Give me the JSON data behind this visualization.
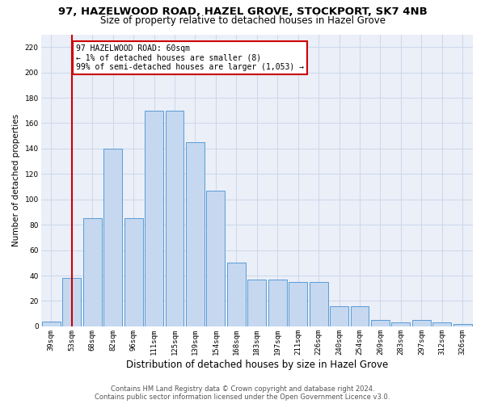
{
  "title": "97, HAZELWOOD ROAD, HAZEL GROVE, STOCKPORT, SK7 4NB",
  "subtitle": "Size of property relative to detached houses in Hazel Grove",
  "xlabel": "Distribution of detached houses by size in Hazel Grove",
  "ylabel": "Number of detached properties",
  "categories": [
    "39sqm",
    "53sqm",
    "68sqm",
    "82sqm",
    "96sqm",
    "111sqm",
    "125sqm",
    "139sqm",
    "154sqm",
    "168sqm",
    "183sqm",
    "197sqm",
    "211sqm",
    "226sqm",
    "240sqm",
    "254sqm",
    "269sqm",
    "283sqm",
    "297sqm",
    "312sqm",
    "326sqm"
  ],
  "values": [
    4,
    38,
    85,
    140,
    85,
    170,
    170,
    145,
    107,
    50,
    37,
    37,
    35,
    35,
    16,
    16,
    5,
    3,
    5,
    3,
    2
  ],
  "bar_color": "#c5d8f0",
  "bar_edge_color": "#5a9bd5",
  "ref_line_x": 1,
  "ref_line_color": "#cc0000",
  "annotation_text": "97 HAZELWOOD ROAD: 60sqm\n← 1% of detached houses are smaller (8)\n99% of semi-detached houses are larger (1,053) →",
  "annotation_box_edgecolor": "#cc0000",
  "ylim_max": 230,
  "yticks": [
    0,
    20,
    40,
    60,
    80,
    100,
    120,
    140,
    160,
    180,
    200,
    220
  ],
  "grid_color": "#c8d4e8",
  "bg_color": "#eaeff8",
  "footer": "Contains HM Land Registry data © Crown copyright and database right 2024.\nContains public sector information licensed under the Open Government Licence v3.0.",
  "title_fontsize": 9.5,
  "subtitle_fontsize": 8.5,
  "xlabel_fontsize": 8.5,
  "ylabel_fontsize": 7.5,
  "tick_fontsize": 6.5,
  "annot_fontsize": 7,
  "footer_fontsize": 6
}
